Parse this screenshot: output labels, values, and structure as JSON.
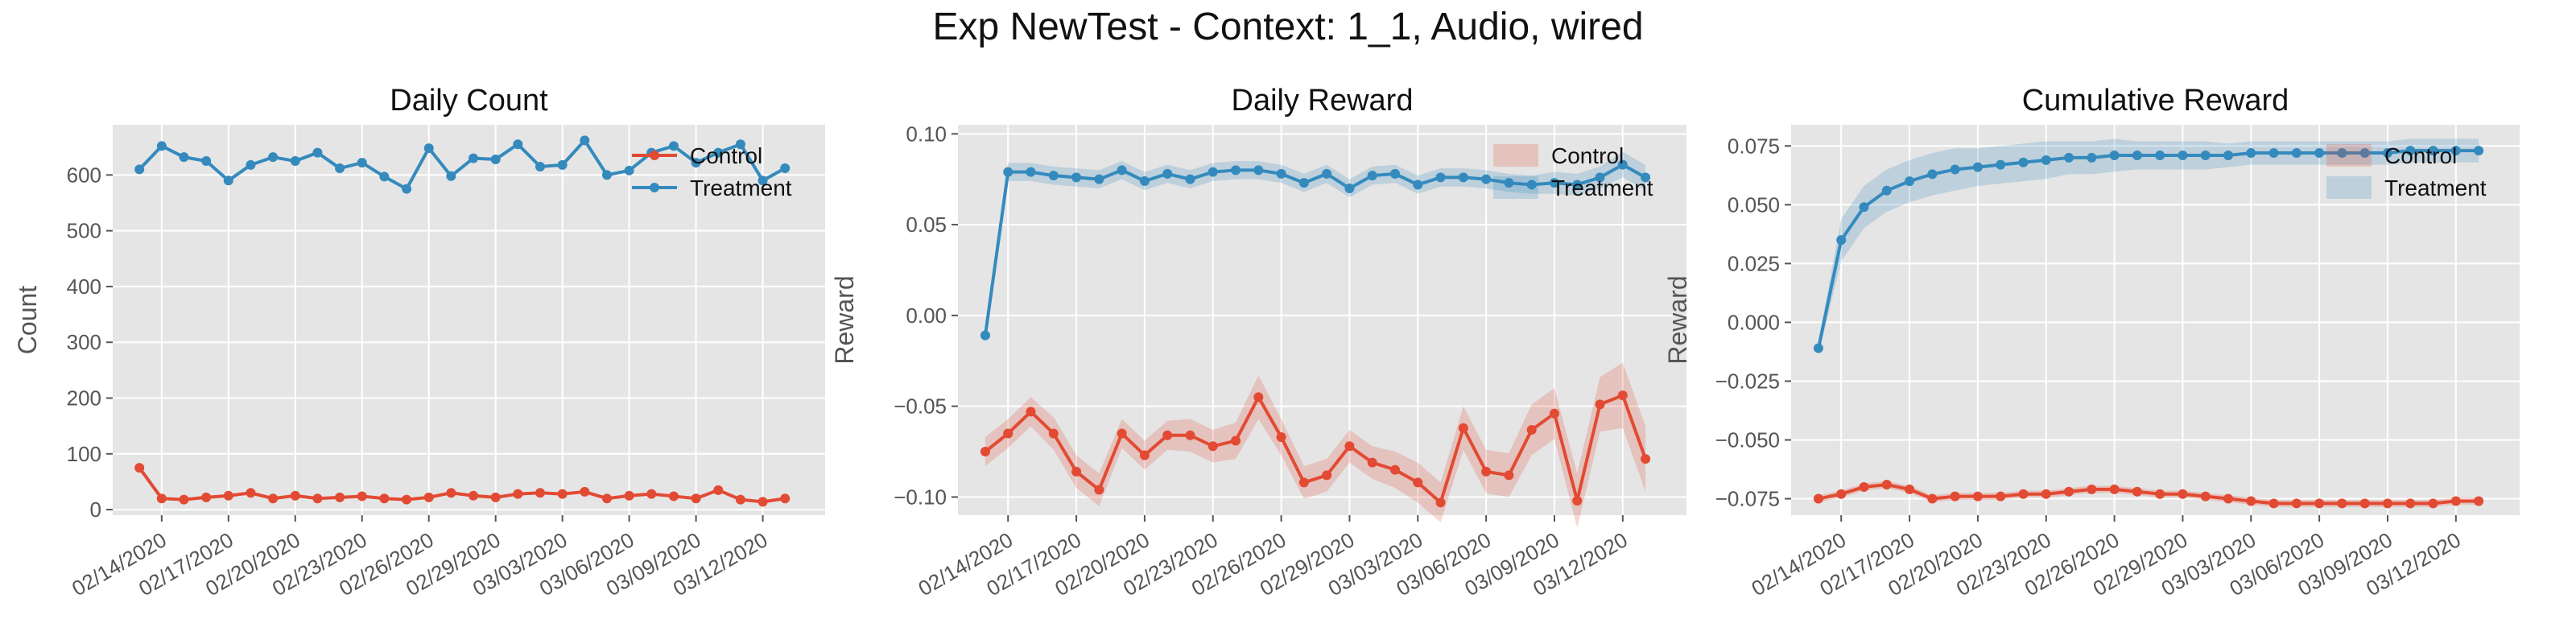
{
  "figure_title": "Exp NewTest - Context: 1_1, Audio, wired",
  "colors": {
    "control": "#e24a33",
    "treatment": "#348abd",
    "panel_bg": "#e5e5e5",
    "grid": "#ffffff"
  },
  "chart_data": [
    {
      "type": "line",
      "title": "Daily Count",
      "xlabel": "",
      "ylabel": "Count",
      "legend": "top-right",
      "grid": true,
      "x_start": "2020-02-13",
      "xticks": [
        "02/14/2020",
        "02/17/2020",
        "02/20/2020",
        "02/23/2020",
        "02/26/2020",
        "02/29/2020",
        "03/03/2020",
        "03/06/2020",
        "03/09/2020",
        "03/12/2020"
      ],
      "yticks": [
        "0",
        "100",
        "200",
        "300",
        "400",
        "500",
        "600"
      ],
      "ylim": [
        -10,
        690
      ],
      "series": [
        {
          "name": "Control",
          "band": false,
          "values": [
            75,
            20,
            18,
            22,
            25,
            30,
            20,
            25,
            20,
            22,
            24,
            20,
            18,
            22,
            30,
            25,
            22,
            28,
            30,
            28,
            32,
            20,
            25,
            28,
            24,
            20,
            35,
            18,
            14,
            20
          ],
          "band_half": []
        },
        {
          "name": "Treatment",
          "band": false,
          "values": [
            610,
            652,
            632,
            625,
            590,
            618,
            632,
            625,
            640,
            612,
            622,
            597,
            575,
            648,
            598,
            630,
            628,
            655,
            615,
            618,
            662,
            600,
            608,
            640,
            652,
            622,
            640,
            655,
            590,
            612
          ],
          "band_half": []
        }
      ]
    },
    {
      "type": "line",
      "title": "Daily Reward",
      "xlabel": "",
      "ylabel": "Reward",
      "legend": "top-right",
      "grid": true,
      "x_start": "2020-02-13",
      "xticks": [
        "02/14/2020",
        "02/17/2020",
        "02/20/2020",
        "02/23/2020",
        "02/26/2020",
        "02/29/2020",
        "03/03/2020",
        "03/06/2020",
        "03/09/2020",
        "03/12/2020"
      ],
      "yticks": [
        "−0.10",
        "−0.05",
        "0.00",
        "0.05",
        "0.10"
      ],
      "ylim": [
        -0.11,
        0.105
      ],
      "series": [
        {
          "name": "Control",
          "band": true,
          "values": [
            -0.075,
            -0.065,
            -0.053,
            -0.065,
            -0.086,
            -0.096,
            -0.065,
            -0.077,
            -0.066,
            -0.066,
            -0.072,
            -0.069,
            -0.045,
            -0.067,
            -0.092,
            -0.088,
            -0.072,
            -0.081,
            -0.085,
            -0.092,
            -0.103,
            -0.062,
            -0.086,
            -0.088,
            -0.063,
            -0.054,
            -0.102,
            -0.049,
            -0.044,
            -0.079
          ],
          "band_half": [
            0.008,
            0.008,
            0.008,
            0.009,
            0.009,
            0.009,
            0.008,
            0.008,
            0.008,
            0.009,
            0.009,
            0.01,
            0.012,
            0.01,
            0.009,
            0.009,
            0.009,
            0.009,
            0.01,
            0.011,
            0.011,
            0.012,
            0.012,
            0.012,
            0.014,
            0.014,
            0.015,
            0.015,
            0.018,
            0.018
          ]
        },
        {
          "name": "Treatment",
          "band": true,
          "values": [
            -0.011,
            0.079,
            0.079,
            0.077,
            0.076,
            0.075,
            0.08,
            0.074,
            0.078,
            0.075,
            0.079,
            0.08,
            0.08,
            0.078,
            0.073,
            0.078,
            0.07,
            0.077,
            0.078,
            0.072,
            0.076,
            0.076,
            0.075,
            0.073,
            0.072,
            0.073,
            0.072,
            0.076,
            0.083,
            0.076
          ],
          "band_half": [
            0.004,
            0.005,
            0.005,
            0.005,
            0.005,
            0.005,
            0.005,
            0.005,
            0.005,
            0.005,
            0.005,
            0.005,
            0.005,
            0.005,
            0.005,
            0.005,
            0.005,
            0.005,
            0.005,
            0.005,
            0.005,
            0.005,
            0.005,
            0.005,
            0.005,
            0.006,
            0.006,
            0.006,
            0.007,
            0.007
          ]
        }
      ]
    },
    {
      "type": "line",
      "title": "Cumulative Reward",
      "xlabel": "",
      "ylabel": "Reward",
      "legend": "top-right",
      "grid": true,
      "x_start": "2020-02-13",
      "xticks": [
        "02/14/2020",
        "02/17/2020",
        "02/20/2020",
        "02/23/2020",
        "02/26/2020",
        "02/29/2020",
        "03/03/2020",
        "03/06/2020",
        "03/09/2020",
        "03/12/2020"
      ],
      "yticks": [
        "−0.075",
        "−0.050",
        "−0.025",
        "0.000",
        "0.025",
        "0.050",
        "0.075"
      ],
      "ylim": [
        -0.082,
        0.084
      ],
      "series": [
        {
          "name": "Control",
          "band": true,
          "values": [
            -0.075,
            -0.073,
            -0.07,
            -0.069,
            -0.071,
            -0.075,
            -0.074,
            -0.074,
            -0.074,
            -0.073,
            -0.073,
            -0.072,
            -0.071,
            -0.071,
            -0.072,
            -0.073,
            -0.073,
            -0.074,
            -0.075,
            -0.076,
            -0.077,
            -0.077,
            -0.077,
            -0.077,
            -0.077,
            -0.077,
            -0.077,
            -0.077,
            -0.076,
            -0.076
          ],
          "band_half": [
            0.0015,
            0.0015,
            0.0015,
            0.0015,
            0.0015,
            0.0015,
            0.0015,
            0.0015,
            0.0015,
            0.0015,
            0.0015,
            0.0015,
            0.0015,
            0.0015,
            0.0015,
            0.0015,
            0.0015,
            0.0015,
            0.0015,
            0.0015,
            0.0015,
            0.0015,
            0.0015,
            0.0015,
            0.0015,
            0.0015,
            0.0015,
            0.0015,
            0.0015,
            0.0015
          ]
        },
        {
          "name": "Treatment",
          "band": true,
          "values": [
            -0.011,
            0.035,
            0.049,
            0.056,
            0.06,
            0.063,
            0.065,
            0.066,
            0.067,
            0.068,
            0.069,
            0.07,
            0.07,
            0.071,
            0.071,
            0.071,
            0.071,
            0.071,
            0.071,
            0.072,
            0.072,
            0.072,
            0.072,
            0.072,
            0.072,
            0.072,
            0.073,
            0.073,
            0.073,
            0.073
          ],
          "band_half": [
            0.003,
            0.009,
            0.009,
            0.009,
            0.009,
            0.009,
            0.009,
            0.008,
            0.008,
            0.008,
            0.008,
            0.007,
            0.007,
            0.007,
            0.006,
            0.006,
            0.006,
            0.006,
            0.005,
            0.005,
            0.005,
            0.005,
            0.005,
            0.005,
            0.005,
            0.005,
            0.005,
            0.005,
            0.005,
            0.005
          ]
        }
      ]
    }
  ]
}
